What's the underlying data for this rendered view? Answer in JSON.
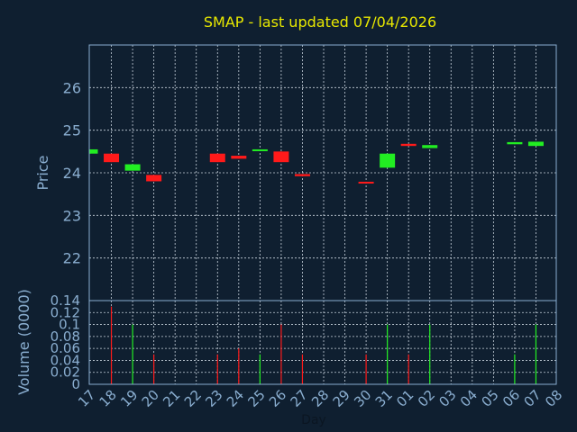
{
  "chart_data": {
    "type": "candlestick",
    "title": "SMAP - last updated 07/04/2026",
    "xlabel": "Day",
    "x_tick_labels": [
      "17",
      "18",
      "19",
      "20",
      "21",
      "22",
      "23",
      "24",
      "25",
      "26",
      "27",
      "28",
      "29",
      "30",
      "31",
      "01",
      "02",
      "03",
      "04",
      "05",
      "06",
      "07",
      "08"
    ],
    "price_panel": {
      "ylabel": "Price",
      "ylim": [
        21,
        27
      ],
      "y_ticks": [
        22,
        23,
        24,
        25,
        26
      ],
      "candles": [
        {
          "day": 0,
          "open": 24.45,
          "close": 24.55,
          "high": 24.55,
          "low": 24.45
        },
        {
          "day": 1,
          "open": 24.45,
          "close": 24.25,
          "high": 24.45,
          "low": 24.25
        },
        {
          "day": 2,
          "open": 24.05,
          "close": 24.2,
          "high": 24.2,
          "low": 24.05
        },
        {
          "day": 3,
          "open": 23.95,
          "close": 23.8,
          "high": 23.95,
          "low": 23.8
        },
        {
          "day": 6,
          "open": 24.45,
          "close": 24.25,
          "high": 24.45,
          "low": 24.25
        },
        {
          "day": 7,
          "open": 24.4,
          "close": 24.33,
          "high": 24.4,
          "low": 24.33
        },
        {
          "day": 8,
          "open": 24.52,
          "close": 24.55,
          "high": 24.55,
          "low": 24.52
        },
        {
          "day": 9,
          "open": 24.5,
          "close": 24.25,
          "high": 24.5,
          "low": 24.25
        },
        {
          "day": 10,
          "open": 23.97,
          "close": 23.92,
          "high": 23.97,
          "low": 23.92
        },
        {
          "day": 13,
          "open": 23.79,
          "close": 23.77,
          "high": 23.79,
          "low": 23.77
        },
        {
          "day": 14,
          "open": 24.12,
          "close": 24.45,
          "high": 24.45,
          "low": 24.12
        },
        {
          "day": 15,
          "open": 24.68,
          "close": 24.63,
          "high": 24.68,
          "low": 24.63
        },
        {
          "day": 16,
          "open": 24.58,
          "close": 24.65,
          "high": 24.65,
          "low": 24.58
        },
        {
          "day": 20,
          "open": 24.67,
          "close": 24.72,
          "high": 24.72,
          "low": 24.67
        },
        {
          "day": 21,
          "open": 24.63,
          "close": 24.73,
          "high": 24.73,
          "low": 24.63
        }
      ]
    },
    "volume_panel": {
      "ylabel": "Volume (0000)",
      "ylim": [
        0,
        0.14
      ],
      "y_tick_labels": [
        "0.14",
        "0.12",
        "0.1",
        "0.08",
        "0.06",
        "0.04",
        "0.02",
        "0"
      ],
      "y_ticks": [
        0.14,
        0.12,
        0.1,
        0.08,
        0.06,
        0.04,
        0.02,
        0
      ],
      "bars": [
        {
          "day": 1,
          "value": 0.13,
          "up": false
        },
        {
          "day": 2,
          "value": 0.1,
          "up": true
        },
        {
          "day": 3,
          "value": 0.05,
          "up": false
        },
        {
          "day": 6,
          "value": 0.05,
          "up": false
        },
        {
          "day": 7,
          "value": 0.06,
          "up": false
        },
        {
          "day": 8,
          "value": 0.05,
          "up": true
        },
        {
          "day": 9,
          "value": 0.1,
          "up": false
        },
        {
          "day": 10,
          "value": 0.05,
          "up": false
        },
        {
          "day": 13,
          "value": 0.05,
          "up": false
        },
        {
          "day": 14,
          "value": 0.1,
          "up": true
        },
        {
          "day": 15,
          "value": 0.05,
          "up": false
        },
        {
          "day": 16,
          "value": 0.1,
          "up": true
        },
        {
          "day": 20,
          "value": 0.05,
          "up": true
        },
        {
          "day": 21,
          "value": 0.1,
          "up": true
        }
      ]
    },
    "colors": {
      "background": "#0f1f30",
      "frame": "#8aaed0",
      "grid": "#c8d2dc",
      "up": "#22ee22",
      "down": "#ff1a1a",
      "title": "#e8e800"
    }
  }
}
